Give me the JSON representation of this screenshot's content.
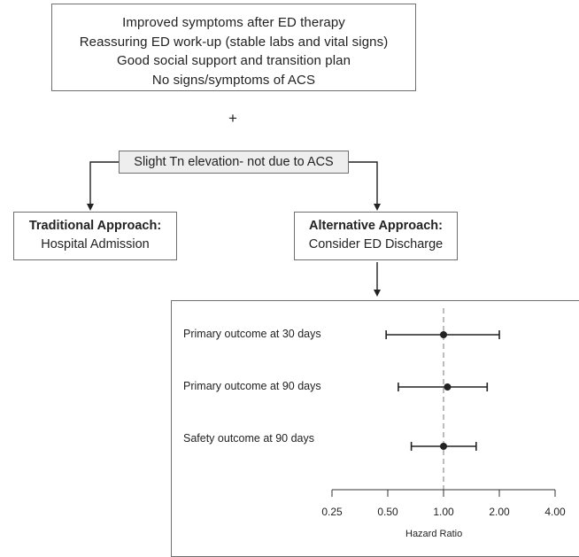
{
  "top_box": {
    "lines": [
      "Improved symptoms after ED therapy",
      "Reassuring ED work-up (stable labs and vital signs)",
      "Good social support and transition plan",
      "No signs/symptoms of ACS"
    ]
  },
  "plus": "+",
  "middle_box": {
    "text": "Slight Tn elevation- not due to ACS"
  },
  "left_box": {
    "title": "Traditional Approach:",
    "subtitle": "Hospital Admission"
  },
  "right_box": {
    "title": "Alternative Approach:",
    "subtitle": "Consider ED Discharge"
  },
  "chart_data": {
    "type": "forest",
    "xlabel": "Hazard Ratio",
    "xscale": "log2",
    "xticks": [
      0.25,
      0.5,
      1.0,
      2.0,
      4.0
    ],
    "xtick_labels": [
      "0.25",
      "0.50",
      "1.00",
      "2.00",
      "4.00"
    ],
    "reference_line": 1.0,
    "rows": [
      {
        "label": "Primary outcome at 30 days",
        "estimate": 1.0,
        "lower": 0.49,
        "upper": 2.0
      },
      {
        "label": "Primary outcome at 90 days",
        "estimate": 1.05,
        "lower": 0.57,
        "upper": 1.72
      },
      {
        "label": "Safety outcome at 90 days",
        "estimate": 1.0,
        "lower": 0.67,
        "upper": 1.5
      }
    ]
  }
}
